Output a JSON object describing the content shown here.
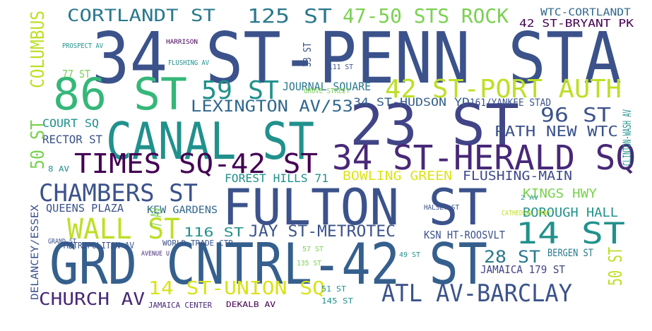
{
  "words": [
    "34 ST-PENN STA",
    "86 ST",
    "CANAL ST",
    "23 ST",
    "34 ST-HERALD SQ",
    "TIMES SQ-42 ST",
    "FULTON ST",
    "GRD CNTRL-42 ST",
    "CHAMBERS ST",
    "WALL ST",
    "14 ST",
    "ATL AV-BARCLAY",
    "14 ST-UNION SQ",
    "CHURCH AV",
    "CORTLANDT ST",
    "125 ST",
    "47-50 STS ROCK",
    "WTC-CORTLANDT",
    "42 ST-BRYANT PK",
    "42 ST-PORT AUTH",
    "59 ST",
    "JOURNAL SQUARE",
    "LEXINGTON AV/53",
    "34 ST-HUDSON YD",
    "161/YANKEE STAD",
    "96 ST",
    "PATH NEW WTC",
    "COURT SQ",
    "RECTOR ST",
    "BOWLING GREEN",
    "FLUSHING-MAIN",
    "FOREST HILLS 71",
    "KINGS HWY",
    "BOROUGH HALL",
    "QUEENS PLAZA",
    "KEW GARDENS",
    "116 ST",
    "JAY ST-METROTEC",
    "28 ST",
    "JAMAICA 179 ST",
    "METROPOLITAN AV",
    "WORLD TRADE CTR",
    "JAMAICA CENTER",
    "DEKALB AV",
    "145 ST",
    "BERGEN ST",
    "COLUMBUS",
    "50 ST",
    "DELANCEY/ESSEX",
    "50 ST",
    "CLINTON-WASH AV",
    "7 AV",
    "33 ST",
    "HALSEY ST",
    "GROVE STREET",
    "PROSPECT AV",
    "HARRISON",
    "FLUSHING AV",
    "8 AV",
    "GRAND ST",
    "AVENUE U",
    "57 ST",
    "135 ST",
    "51 ST",
    "49 ST",
    "2 AV",
    "CATHEDRAL PKWY",
    "77 ST",
    "111 ST",
    "KSN HT-ROOSVLT"
  ]
}
